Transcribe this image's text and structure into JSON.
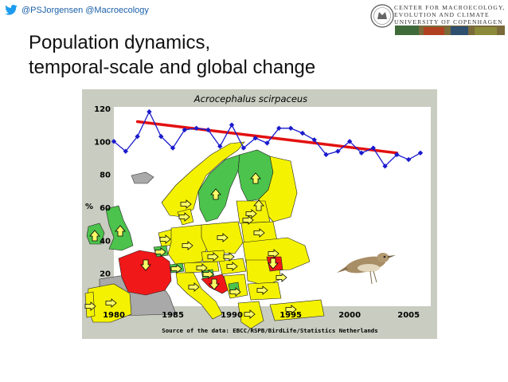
{
  "header": {
    "twitter_handles": "@PSJorgensen @Macroecology",
    "logo_lines": [
      "CENTER FOR MACROECOLOGY,",
      "EVOLUTION AND CLIMATE",
      "UNIVERSITY OF COPENHAGEN"
    ]
  },
  "slide": {
    "title_line1": "Population dynamics,",
    "title_line2": "temporal-scale and global change"
  },
  "chart_data": {
    "type": "line",
    "title": "Acrocephalus scirpaceus",
    "ylabel": "%",
    "source": "Source of the data: EBCC/RSPB/BirdLife/Statistics Netherlands",
    "x_ticks": [
      "1980",
      "1985",
      "1990",
      "1995",
      "2000",
      "2005"
    ],
    "y_ticks": [
      "20",
      "40",
      "60",
      "80",
      "100",
      "120"
    ],
    "xlim": [
      1980,
      2006
    ],
    "ylim": [
      0,
      120
    ],
    "x": [
      1980,
      1981,
      1982,
      1983,
      1984,
      1985,
      1986,
      1987,
      1988,
      1989,
      1990,
      1991,
      1992,
      1993,
      1994,
      1995,
      1996,
      1997,
      1998,
      1999,
      2000,
      2001,
      2002,
      2003,
      2004,
      2005,
      2006
    ],
    "values": [
      100,
      94,
      103,
      118,
      103,
      96,
      107,
      108,
      107,
      97,
      110,
      96,
      102,
      99,
      108,
      108,
      105,
      101,
      92,
      94,
      100,
      93,
      96,
      85,
      92,
      89,
      93
    ],
    "trend": {
      "x": [
        1982,
        2004
      ],
      "y": [
        112,
        93
      ]
    },
    "colors": {
      "line": "#1a1acd",
      "trend": "#e31010",
      "background": "#c9ccc0"
    }
  },
  "map": {
    "colors": {
      "increase": "#4cc34c",
      "stable": "#f4f200",
      "decline": "#f01818",
      "nodata": "#a9a9a9",
      "border": "#1a1a1a"
    },
    "trend_arrows": [
      {
        "country": "Ireland",
        "dir": "up"
      },
      {
        "country": "UK",
        "dir": "up"
      },
      {
        "country": "France",
        "dir": "down"
      },
      {
        "country": "Portugal",
        "dir": "right"
      },
      {
        "country": "Spain",
        "dir": "right"
      },
      {
        "country": "Denmark",
        "dir": "right"
      },
      {
        "country": "Netherlands",
        "dir": "right"
      },
      {
        "country": "Belgium",
        "dir": "right"
      },
      {
        "country": "Germany",
        "dir": "right"
      },
      {
        "country": "Switzerland",
        "dir": "right"
      },
      {
        "country": "Italy",
        "dir": "right"
      },
      {
        "country": "Sweden",
        "dir": "up"
      },
      {
        "country": "Finland",
        "dir": "up"
      },
      {
        "country": "Norway",
        "dir": "right"
      },
      {
        "country": "Estonia",
        "dir": "up"
      },
      {
        "country": "Latvia",
        "dir": "right"
      },
      {
        "country": "Lithuania",
        "dir": "right"
      },
      {
        "country": "Poland",
        "dir": "right"
      },
      {
        "country": "Belarus",
        "dir": "right"
      },
      {
        "country": "Czechia",
        "dir": "right"
      },
      {
        "country": "Slovakia",
        "dir": "right"
      },
      {
        "country": "Austria",
        "dir": "right"
      },
      {
        "country": "Hungary",
        "dir": "right"
      },
      {
        "country": "Slovenia",
        "dir": "right"
      },
      {
        "country": "Croatia",
        "dir": "down"
      },
      {
        "country": "Ukraine",
        "dir": "right"
      },
      {
        "country": "Romania",
        "dir": "down"
      },
      {
        "country": "Serbia",
        "dir": "right"
      },
      {
        "country": "Bulgaria",
        "dir": "right"
      },
      {
        "country": "Greece",
        "dir": "right"
      },
      {
        "country": "Turkey",
        "dir": "right"
      },
      {
        "country": "Moldova",
        "dir": "right"
      }
    ]
  }
}
